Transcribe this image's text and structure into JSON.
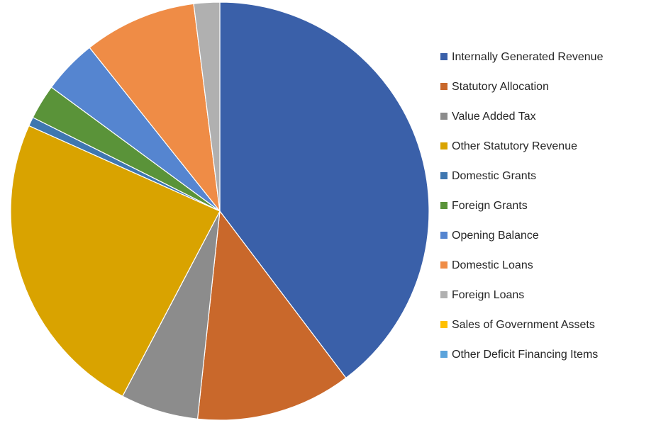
{
  "chart_data": {
    "type": "pie",
    "categories": [
      "Internally Generated Revenue",
      "Statutory Allocation",
      "Value Added Tax",
      "Other Statutory Revenue",
      "Domestic Grants",
      "Foreign Grants",
      "Opening Balance",
      "Domestic Loans",
      "Foreign Loans",
      "Sales of Government Assets",
      "Other Deficit Financing Items"
    ],
    "values": [
      39.7,
      12.0,
      6.0,
      24.0,
      0.7,
      2.7,
      4.2,
      8.7,
      2.0,
      0,
      0
    ],
    "colors": [
      "#3a60a9",
      "#c9682b",
      "#8c8c8c",
      "#d9a300",
      "#3f77b0",
      "#5a9339",
      "#5585d0",
      "#ef8c46",
      "#b0b0b0",
      "#ffc000",
      "#5ba3db"
    ],
    "legend": "right"
  }
}
